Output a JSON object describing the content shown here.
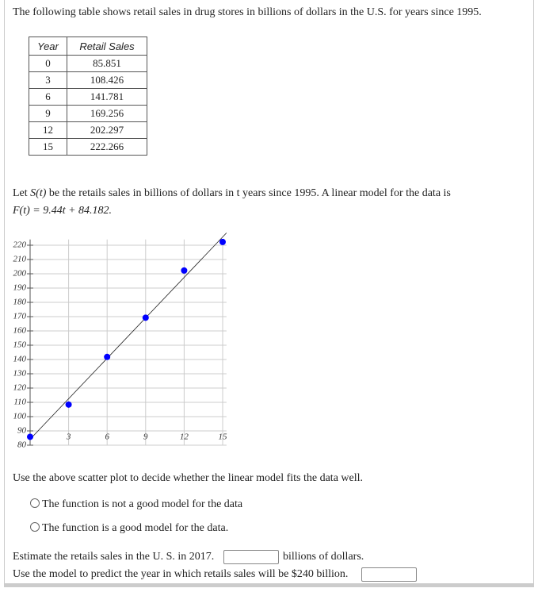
{
  "intro": "The following table shows retail sales in drug stores in billions of dollars in the U.S. for years since 1995.",
  "table": {
    "header": [
      "Year",
      "Retail Sales"
    ],
    "rows": [
      [
        "0",
        "85.851"
      ],
      [
        "3",
        "108.426"
      ],
      [
        "6",
        "141.781"
      ],
      [
        "9",
        "169.256"
      ],
      [
        "12",
        "202.297"
      ],
      [
        "15",
        "222.266"
      ]
    ]
  },
  "model": {
    "text": [
      "Let ",
      "S(t)",
      " be the retails sales in billions of dollars in t years since 1995. A linear model for the data is"
    ],
    "formula": "F(t) = 9.44t + 84.182."
  },
  "chart_data": {
    "type": "scatter",
    "x": [
      0,
      3,
      6,
      9,
      12,
      15
    ],
    "values": [
      85.851,
      108.426,
      141.781,
      169.256,
      202.297,
      222.266
    ],
    "color": "#0000ff",
    "line": {
      "slope": 9.44,
      "intercept": 84.182,
      "color": "#222222"
    },
    "xlim": [
      0,
      15.3
    ],
    "ylim": [
      80,
      224
    ],
    "xticks": [
      3,
      6,
      9,
      12,
      15
    ],
    "yticks": [
      80,
      90,
      100,
      110,
      120,
      130,
      140,
      150,
      160,
      170,
      180,
      190,
      200,
      210,
      220
    ],
    "grid": true
  },
  "question": "Use the above scatter plot to decide whether the linear model fits the data well.",
  "options": [
    "The function is not a good model for the data",
    "The function is a good model for the data."
  ],
  "estimate": {
    "before": "Estimate the retails sales in the U. S. in 2017.",
    "after": "billions of dollars."
  },
  "predict": "Use the model to predict the year in which retails sales will be $240 billion."
}
